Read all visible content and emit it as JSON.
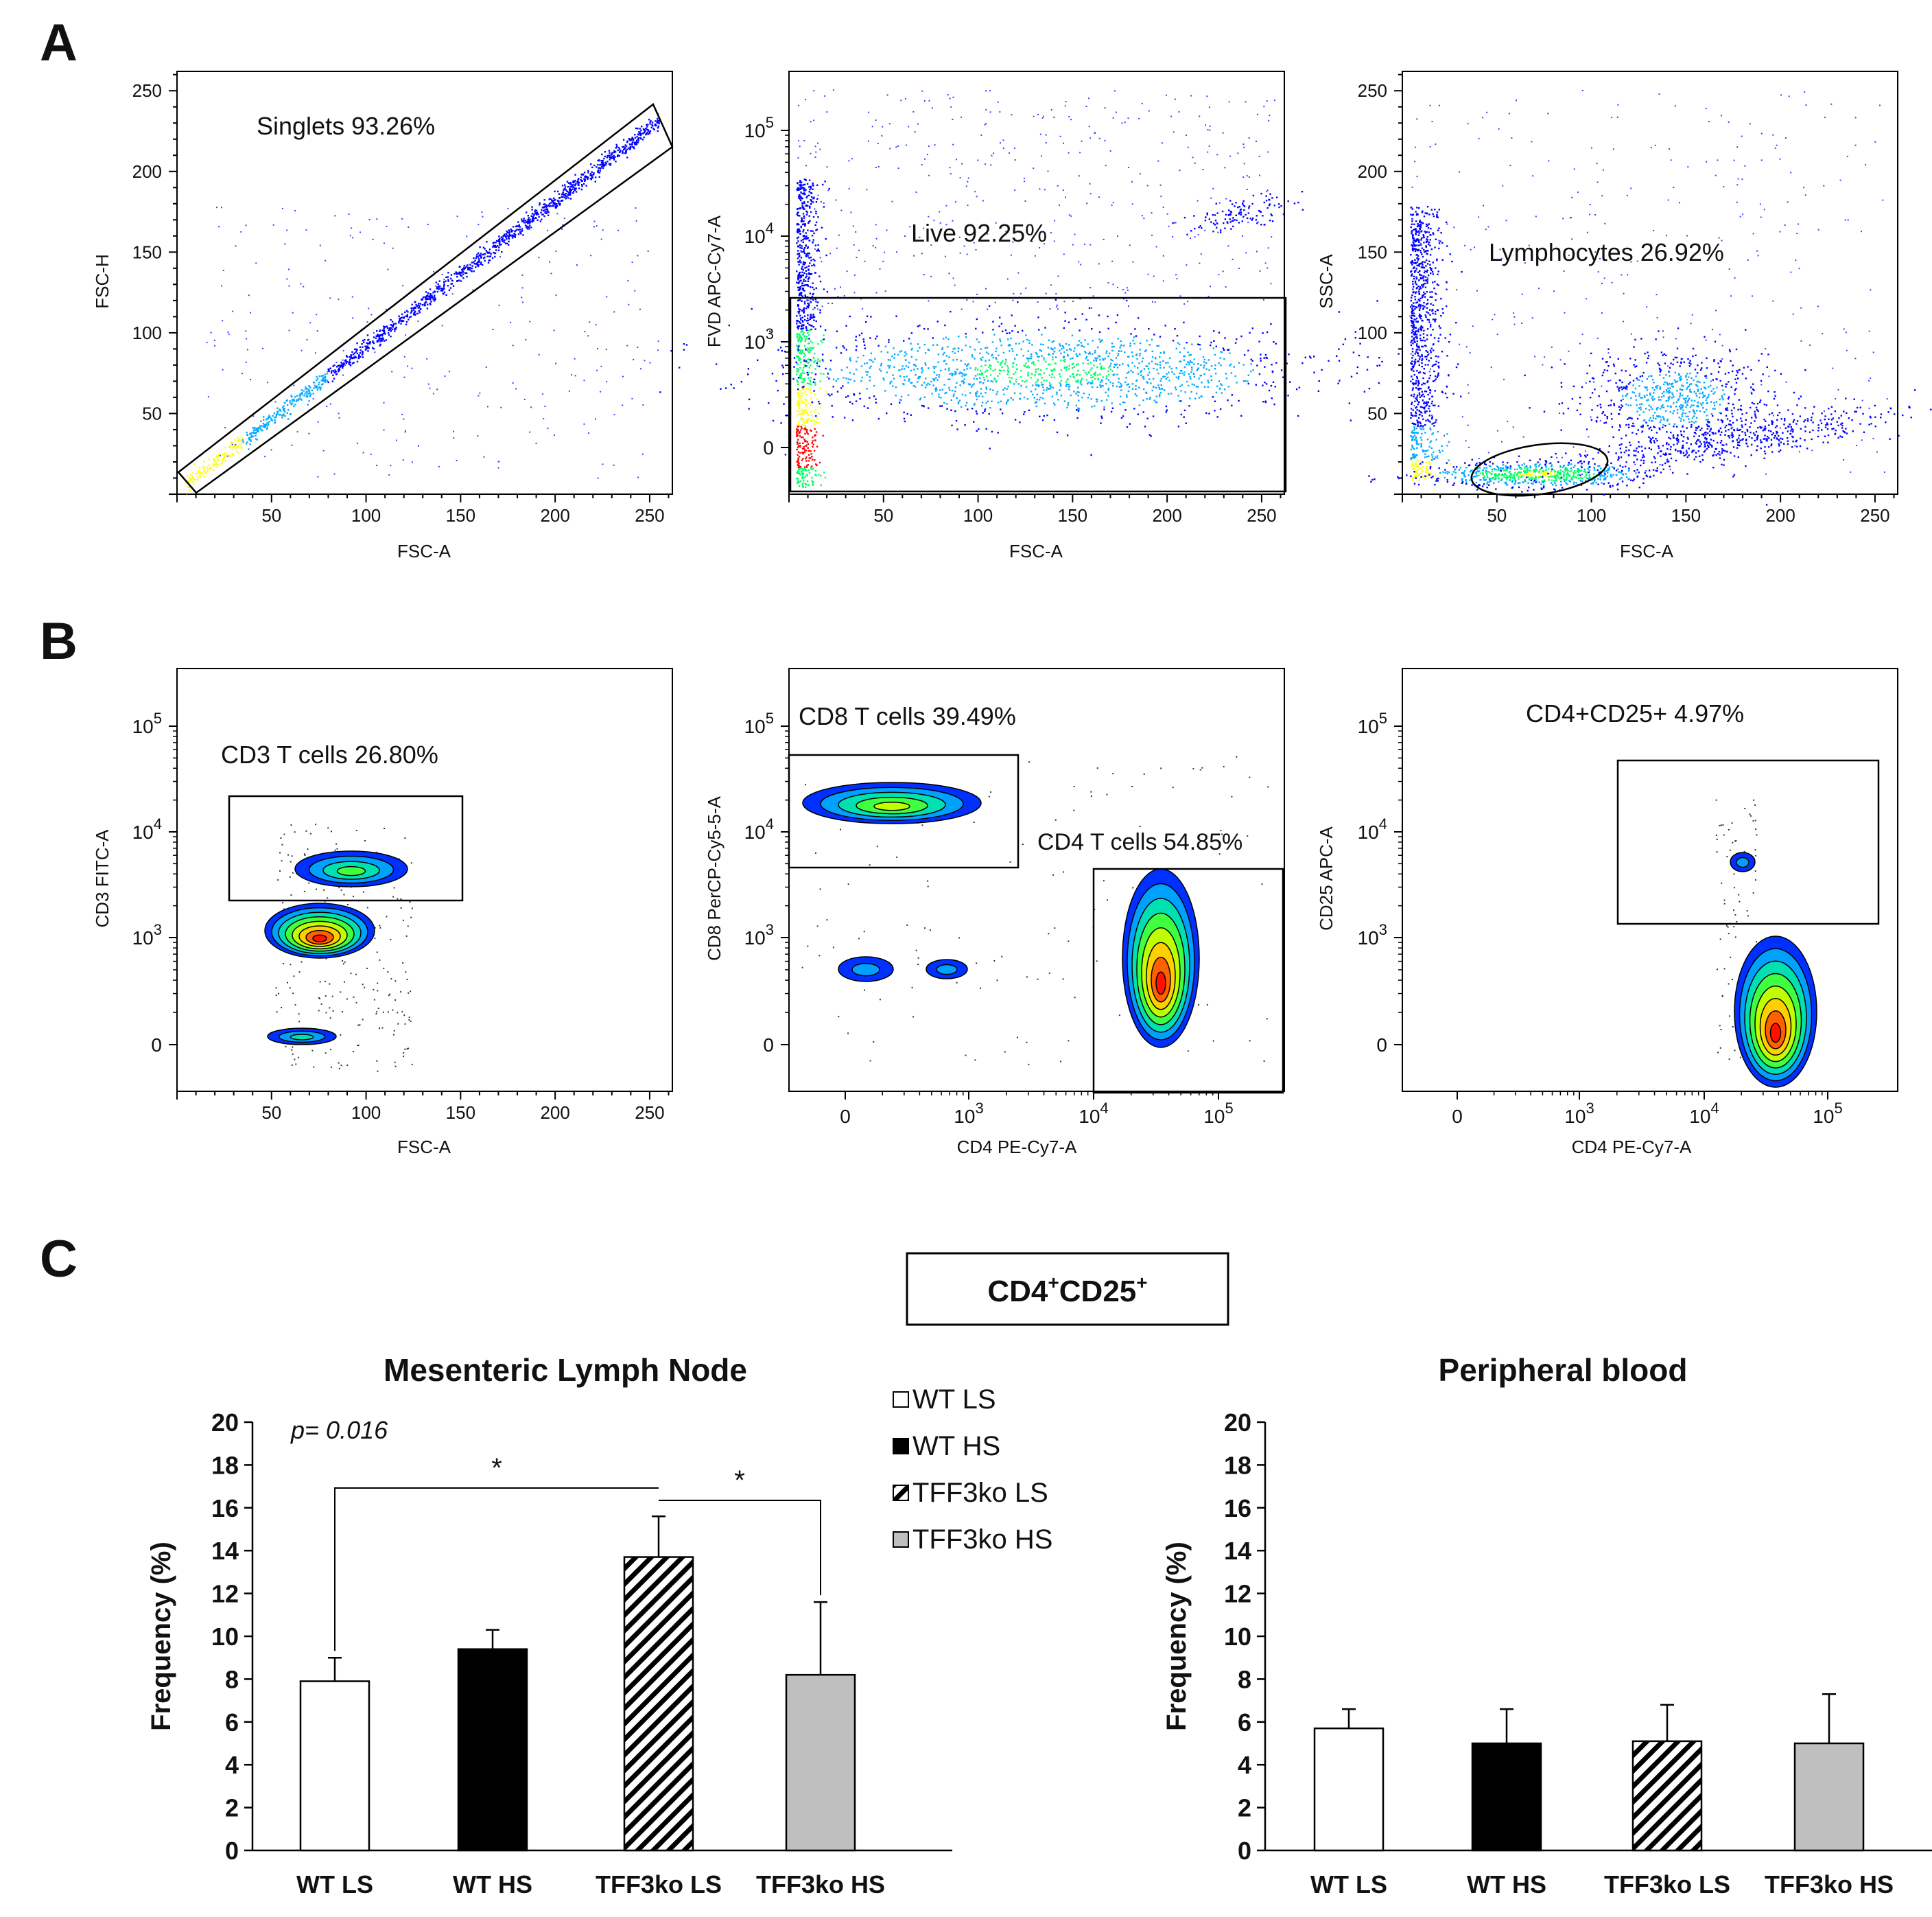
{
  "panels": {
    "A": {
      "letter": "A"
    },
    "B": {
      "letter": "B"
    },
    "C": {
      "letter": "C"
    }
  },
  "chart_data": [
    {
      "type": "scatter",
      "panel": "A",
      "title": "",
      "gate_label": "Singlets 93.26%",
      "xlabel": "FSC-A",
      "ylabel": "FSC-H",
      "xticks": [
        "50",
        "100",
        "150",
        "200",
        "250"
      ],
      "yticks": [
        "50",
        "100",
        "150",
        "200",
        "250"
      ],
      "xlim": [
        0,
        262
      ],
      "ylim": [
        0,
        262
      ],
      "colormap": [
        "#0000ff",
        "#00aaff",
        "#00ff66",
        "#ffff00",
        "#ff0000"
      ]
    },
    {
      "type": "scatter",
      "panel": "A",
      "gate_label": "Live 92.25%",
      "xlabel": "FSC-A",
      "ylabel": "FVD APC-Cy7-A",
      "xticks": [
        "50",
        "100",
        "150",
        "200",
        "250"
      ],
      "yticks": [
        {
          "base": "0",
          "exp": ""
        },
        {
          "base": "10",
          "exp": "3"
        },
        {
          "base": "10",
          "exp": "4"
        },
        {
          "base": "10",
          "exp": "5"
        }
      ]
    },
    {
      "type": "scatter",
      "panel": "A",
      "gate_label": "Lymphocytes 26.92%",
      "xlabel": "FSC-A",
      "ylabel": "SSC-A",
      "xticks": [
        "50",
        "100",
        "150",
        "200",
        "250"
      ],
      "yticks": [
        "50",
        "100",
        "150",
        "200",
        "250"
      ]
    },
    {
      "type": "contour",
      "panel": "B",
      "gate_label": "CD3 T cells 26.80%",
      "xlabel": "FSC-A",
      "ylabel": "CD3 FITC-A",
      "xticks": [
        "50",
        "100",
        "150",
        "200",
        "250"
      ],
      "yticks": [
        {
          "base": "0",
          "exp": ""
        },
        {
          "base": "10",
          "exp": "3"
        },
        {
          "base": "10",
          "exp": "4"
        },
        {
          "base": "10",
          "exp": "5"
        }
      ]
    },
    {
      "type": "contour",
      "panel": "B",
      "gate_label": "CD8 T cells 39.49%",
      "gate_label_2": "CD4 T cells 54.85%",
      "xlabel": "CD4 PE-Cy7-A",
      "ylabel": "CD8 PerCP-Cy5-5-A",
      "xticks": [
        {
          "base": "0",
          "exp": ""
        },
        {
          "base": "10",
          "exp": "3"
        },
        {
          "base": "10",
          "exp": "4"
        },
        {
          "base": "10",
          "exp": "5"
        }
      ],
      "yticks": [
        {
          "base": "0",
          "exp": ""
        },
        {
          "base": "10",
          "exp": "3"
        },
        {
          "base": "10",
          "exp": "4"
        },
        {
          "base": "10",
          "exp": "5"
        }
      ]
    },
    {
      "type": "contour",
      "panel": "B",
      "gate_label": "CD4+CD25+ 4.97%",
      "xlabel": "CD4 PE-Cy7-A",
      "ylabel": "CD25 APC-A",
      "xticks": [
        {
          "base": "0",
          "exp": ""
        },
        {
          "base": "10",
          "exp": "3"
        },
        {
          "base": "10",
          "exp": "4"
        },
        {
          "base": "10",
          "exp": "5"
        }
      ],
      "yticks": [
        {
          "base": "0",
          "exp": ""
        },
        {
          "base": "10",
          "exp": "3"
        },
        {
          "base": "10",
          "exp": "4"
        },
        {
          "base": "10",
          "exp": "5"
        }
      ]
    },
    {
      "type": "bar",
      "panel": "C",
      "title": "Mesenteric Lymph Node",
      "ylabel": "Frequency (%)",
      "ylim": [
        0,
        20
      ],
      "yticks": [
        "0",
        "2",
        "4",
        "6",
        "8",
        "10",
        "12",
        "14",
        "16",
        "18",
        "20"
      ],
      "categories": [
        "WT LS",
        "WT HS",
        "TFF3ko LS",
        "TFF3ko HS"
      ],
      "values": [
        7.9,
        9.4,
        13.7,
        8.2
      ],
      "errors": [
        1.1,
        0.9,
        1.9,
        3.4
      ],
      "fills": [
        "white",
        "black",
        "hatched",
        "gray"
      ],
      "annotation": "p= 0.016",
      "significance": [
        {
          "from": "WT LS",
          "to": "TFF3ko LS",
          "label": "*"
        },
        {
          "from": "TFF3ko LS",
          "to": "TFF3ko HS",
          "label": "*"
        }
      ]
    },
    {
      "type": "bar",
      "panel": "C",
      "title": "Peripheral blood",
      "ylabel": "Frequency (%)",
      "ylim": [
        0,
        20
      ],
      "yticks": [
        "0",
        "2",
        "4",
        "6",
        "8",
        "10",
        "12",
        "14",
        "16",
        "18",
        "20"
      ],
      "categories": [
        "WT LS",
        "WT HS",
        "TFF3ko LS",
        "TFF3ko HS"
      ],
      "values": [
        5.7,
        5.0,
        5.1,
        5.0
      ],
      "errors": [
        0.9,
        1.6,
        1.7,
        2.3
      ],
      "fills": [
        "white",
        "black",
        "hatched",
        "gray"
      ]
    }
  ],
  "panel_c": {
    "box_title_parts": [
      "CD4",
      "+",
      "CD25",
      "+"
    ],
    "legend": [
      {
        "label": "WT LS",
        "fill": "white"
      },
      {
        "label": "WT HS",
        "fill": "black"
      },
      {
        "label": "TFF3ko LS",
        "fill": "hatched"
      },
      {
        "label": "TFF3ko HS",
        "fill": "gray"
      }
    ]
  }
}
